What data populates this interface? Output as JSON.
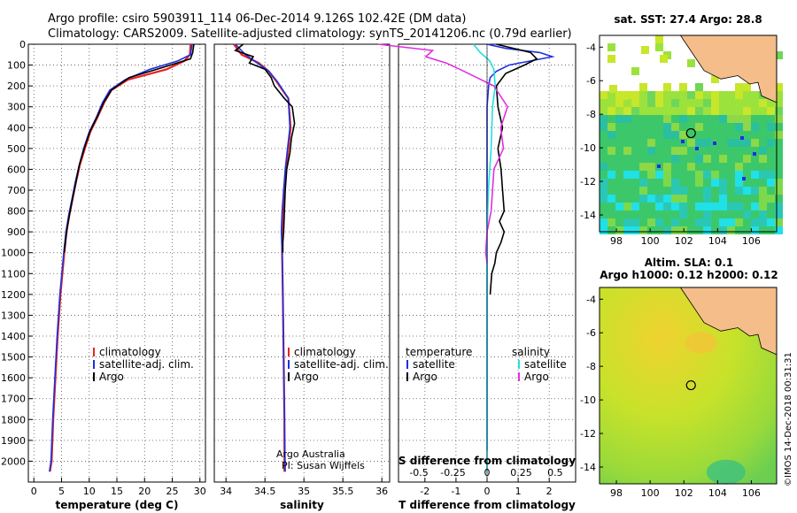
{
  "header": {
    "line1": "Argo profile: csiro 5903911_114 06-Dec-2014 9.126S 102.42E (DM data)",
    "line2": "Climatology: CARS2009. Satellite-adjusted climatology: synTS_20141206.nc (0.79d earlier)"
  },
  "colors": {
    "climatology": "#e8231e",
    "satellite": "#1f2fe0",
    "argo": "#000000",
    "sat_salinity": "#22e0e0",
    "argo_salinity": "#e030e0"
  },
  "chart_data": [
    {
      "type": "line",
      "name": "temperature-panel",
      "xlabel": "temperature (deg C)",
      "ylabel": "",
      "xlim": [
        -1,
        31
      ],
      "ylim": [
        2100,
        0
      ],
      "xticks": [
        "0",
        "5",
        "10",
        "15",
        "20",
        "25",
        "30"
      ],
      "yticks": [
        "0",
        "100",
        "200",
        "300",
        "400",
        "500",
        "600",
        "700",
        "800",
        "900",
        "1000",
        "1100",
        "1200",
        "1300",
        "1400",
        "1500",
        "1600",
        "1700",
        "1800",
        "1900",
        "2000"
      ],
      "legend": [
        "climatology",
        "satellite-adj. clim.",
        "Argo"
      ],
      "series": [
        {
          "key": "clim",
          "x": [
            28.3,
            28.2,
            27.2,
            24,
            17,
            14,
            12.7,
            11.5,
            10.2,
            9.2,
            8.3,
            7.6,
            7,
            6.4,
            5.9,
            5.5,
            4.8,
            4.3,
            3.9,
            3.5,
            3.2,
            2.9
          ],
          "y": [
            0,
            50,
            80,
            120,
            170,
            220,
            280,
            350,
            420,
            500,
            580,
            660,
            740,
            820,
            900,
            1000,
            1200,
            1400,
            1600,
            1800,
            2000,
            2050
          ]
        },
        {
          "key": "sat",
          "x": [
            28.6,
            28.3,
            26,
            21,
            16.5,
            13.7,
            12.4,
            11.3,
            10,
            9,
            8.2,
            7.5,
            6.9,
            6.3,
            5.8,
            5.4,
            4.7,
            4.2,
            3.8,
            3.4,
            3.1,
            2.8
          ],
          "y": [
            0,
            50,
            80,
            120,
            170,
            220,
            280,
            350,
            420,
            500,
            580,
            660,
            740,
            820,
            900,
            1000,
            1200,
            1400,
            1600,
            1800,
            2000,
            2050
          ]
        },
        {
          "key": "argo",
          "x": [
            28.9,
            28.7,
            28.3,
            23.5,
            17.2,
            14,
            12.6,
            11.4,
            10.1,
            9.1,
            8.2,
            7.6,
            7,
            6.4,
            5.9,
            5.5
          ],
          "y": [
            0,
            40,
            70,
            110,
            160,
            220,
            280,
            350,
            420,
            500,
            580,
            660,
            740,
            820,
            900,
            1000
          ]
        }
      ]
    },
    {
      "type": "line",
      "name": "salinity-panel",
      "xlabel": "salinity",
      "ylabel": "",
      "xlim": [
        33.85,
        36.1
      ],
      "ylim": [
        2100,
        0
      ],
      "xticks": [
        "34",
        "34.5",
        "35",
        "35.5",
        "36"
      ],
      "legend": [
        "climatology",
        "satellite-adj. clim.",
        "Argo"
      ],
      "annotations": [
        "Argo Australia",
        "PI: Susan Wijffels"
      ],
      "series": [
        {
          "key": "clim",
          "x": [
            34.1,
            34.2,
            34.42,
            34.55,
            34.65,
            34.8,
            34.83,
            34.8,
            34.77,
            34.75,
            34.73,
            34.72,
            34.72,
            34.73,
            34.74,
            34.75,
            34.75
          ],
          "y": [
            0,
            50,
            90,
            130,
            180,
            260,
            400,
            500,
            600,
            700,
            800,
            900,
            1000,
            1200,
            1500,
            1800,
            2050
          ]
        },
        {
          "key": "sat",
          "x": [
            34.12,
            34.25,
            34.4,
            34.55,
            34.66,
            34.8,
            34.82,
            34.79,
            34.76,
            34.74,
            34.72,
            34.71,
            34.72,
            34.73,
            34.74,
            34.75,
            34.76
          ],
          "y": [
            0,
            50,
            90,
            130,
            180,
            260,
            400,
            500,
            600,
            700,
            800,
            900,
            1000,
            1200,
            1500,
            1800,
            2050
          ]
        },
        {
          "key": "argo",
          "x": [
            34.22,
            34.12,
            34.35,
            34.3,
            34.5,
            34.58,
            34.62,
            34.75,
            34.85,
            34.88,
            34.84,
            34.82,
            34.78,
            34.76,
            34.75,
            34.74,
            34.73,
            34.73
          ],
          "y": [
            0,
            30,
            60,
            90,
            120,
            160,
            200,
            260,
            300,
            380,
            450,
            520,
            600,
            700,
            800,
            900,
            950,
            1000
          ]
        }
      ]
    },
    {
      "type": "line",
      "name": "difference-panel",
      "xlabel": "T difference from climatology",
      "ylabel": "",
      "xlim": [
        -2.85,
        2.85
      ],
      "ylim": [
        2100,
        0
      ],
      "xticks": [
        "-2",
        "-1",
        "0",
        "1",
        "2"
      ],
      "s_xlabel": "S difference from climatology",
      "s_xticks": [
        "-0.5",
        "-0.25",
        "0",
        "0.25",
        "0.5"
      ],
      "legend_left_title": "temperature",
      "legend_right_title": "salinity",
      "legend_left": [
        "satellite",
        "Argo"
      ],
      "legend_right": [
        "satellite",
        "Argo"
      ],
      "series": [
        {
          "key": "t_sat",
          "x": [
            0,
            0.6,
            1.7,
            2.1,
            1.4,
            0.7,
            0.3,
            0.1,
            0.05,
            0,
            0,
            0,
            0,
            0,
            0,
            0
          ],
          "y": [
            0,
            20,
            40,
            60,
            80,
            100,
            130,
            160,
            200,
            300,
            500,
            800,
            1000,
            1300,
            1700,
            1950
          ]
        },
        {
          "key": "t_argo",
          "x": [
            0.3,
            1.4,
            1.6,
            1.2,
            0.6,
            0.3,
            0.35,
            0.5,
            0.35,
            0.45,
            0.5,
            0.55,
            0.4,
            0.55,
            0.45,
            0.3,
            0.25,
            0.15,
            0.1
          ],
          "y": [
            0,
            40,
            70,
            100,
            140,
            200,
            300,
            400,
            500,
            600,
            700,
            800,
            850,
            900,
            950,
            1000,
            1050,
            1100,
            1200
          ]
        },
        {
          "key": "s_sat",
          "x": [
            -0.1,
            -0.05,
            0.02,
            0.05,
            0.06,
            0.04,
            0.03,
            0.01,
            0,
            0,
            0,
            0
          ],
          "y": [
            0,
            40,
            80,
            120,
            200,
            300,
            500,
            700,
            900,
            1200,
            1600,
            2050
          ]
        },
        {
          "key": "s_argo",
          "x": [
            -0.8,
            -0.4,
            -0.45,
            -0.3,
            -0.2,
            0.05,
            0.15,
            0.1,
            0.12,
            0.05,
            0.04,
            0.03,
            0,
            -0.01,
            0
          ],
          "y": [
            0,
            30,
            60,
            90,
            120,
            200,
            300,
            400,
            500,
            600,
            700,
            800,
            900,
            1000,
            1050
          ]
        }
      ]
    },
    {
      "type": "heatmap",
      "name": "sst-map",
      "title": "sat. SST: 27.4 Argo: 28.8",
      "xticks": [
        "98",
        "100",
        "102",
        "104",
        "106"
      ],
      "yticks": [
        "-4",
        "-6",
        "-8",
        "-10",
        "-12",
        "-14"
      ],
      "xlim": [
        97,
        107.5
      ],
      "ylim": [
        -15,
        -3.3
      ],
      "argo_marker": {
        "lon": 102.42,
        "lat": -9.126
      }
    },
    {
      "type": "heatmap",
      "name": "sla-map",
      "title": "Altim. SLA: 0.1",
      "subtitle": "Argo h1000: 0.12 h2000: 0.12",
      "xticks": [
        "98",
        "100",
        "102",
        "104",
        "106"
      ],
      "yticks": [
        "-4",
        "-6",
        "-8",
        "-10",
        "-12",
        "-14"
      ],
      "xlim": [
        97,
        107.5
      ],
      "ylim": [
        -15,
        -3.3
      ],
      "argo_marker": {
        "lon": 102.42,
        "lat": -9.126
      }
    }
  ],
  "footer": {
    "credit": "©IMOS 14-Dec-2018 00:31:31"
  }
}
